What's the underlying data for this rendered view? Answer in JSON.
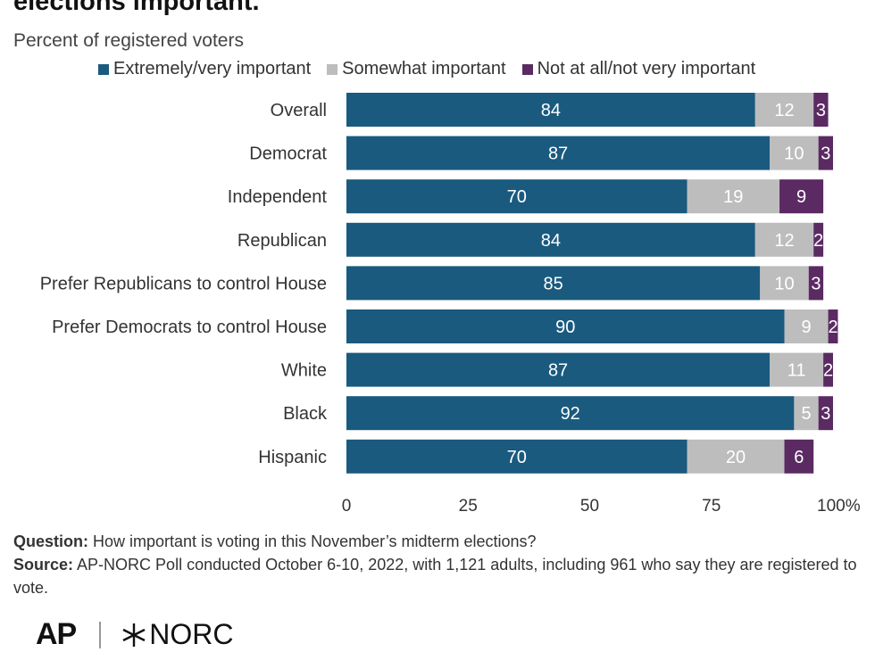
{
  "title": "elections important.",
  "subtitle": "Percent of registered voters",
  "notes": {
    "question_label": "Question:",
    "question_text": "How important is voting in this November’s midterm elections?",
    "source_label": "Source:",
    "source_text": "AP-NORC Poll conducted October 6-10, 2022, with 1,121 adults, including 961 who say they are registered to vote."
  },
  "logos": {
    "ap": "AP",
    "norc": "NORC"
  },
  "colors": {
    "extremely": "#1a5a7e",
    "somewhat": "#bdbdbd",
    "not": "#5b2a63"
  },
  "chart_data": {
    "type": "bar",
    "orientation": "horizontal",
    "stacked": true,
    "categories": [
      "Overall",
      "Democrat",
      "Independent",
      "Republican",
      "Prefer Republicans to control House",
      "Prefer Democrats to control House",
      "White",
      "Black",
      "Hispanic"
    ],
    "series": [
      {
        "name": "Extremely/very important",
        "color": "#1a5a7e",
        "values": [
          84,
          87,
          70,
          84,
          85,
          90,
          87,
          92,
          70
        ]
      },
      {
        "name": "Somewhat important",
        "color": "#bdbdbd",
        "values": [
          12,
          10,
          19,
          12,
          10,
          9,
          11,
          5,
          20
        ]
      },
      {
        "name": "Not at all/not very important",
        "color": "#5b2a63",
        "values": [
          3,
          3,
          9,
          2,
          3,
          2,
          2,
          3,
          6
        ]
      }
    ],
    "xlim": [
      0,
      100
    ],
    "xticks": [
      "0",
      "25",
      "50",
      "75",
      "100%"
    ],
    "legend_position": "top",
    "grid": false
  }
}
